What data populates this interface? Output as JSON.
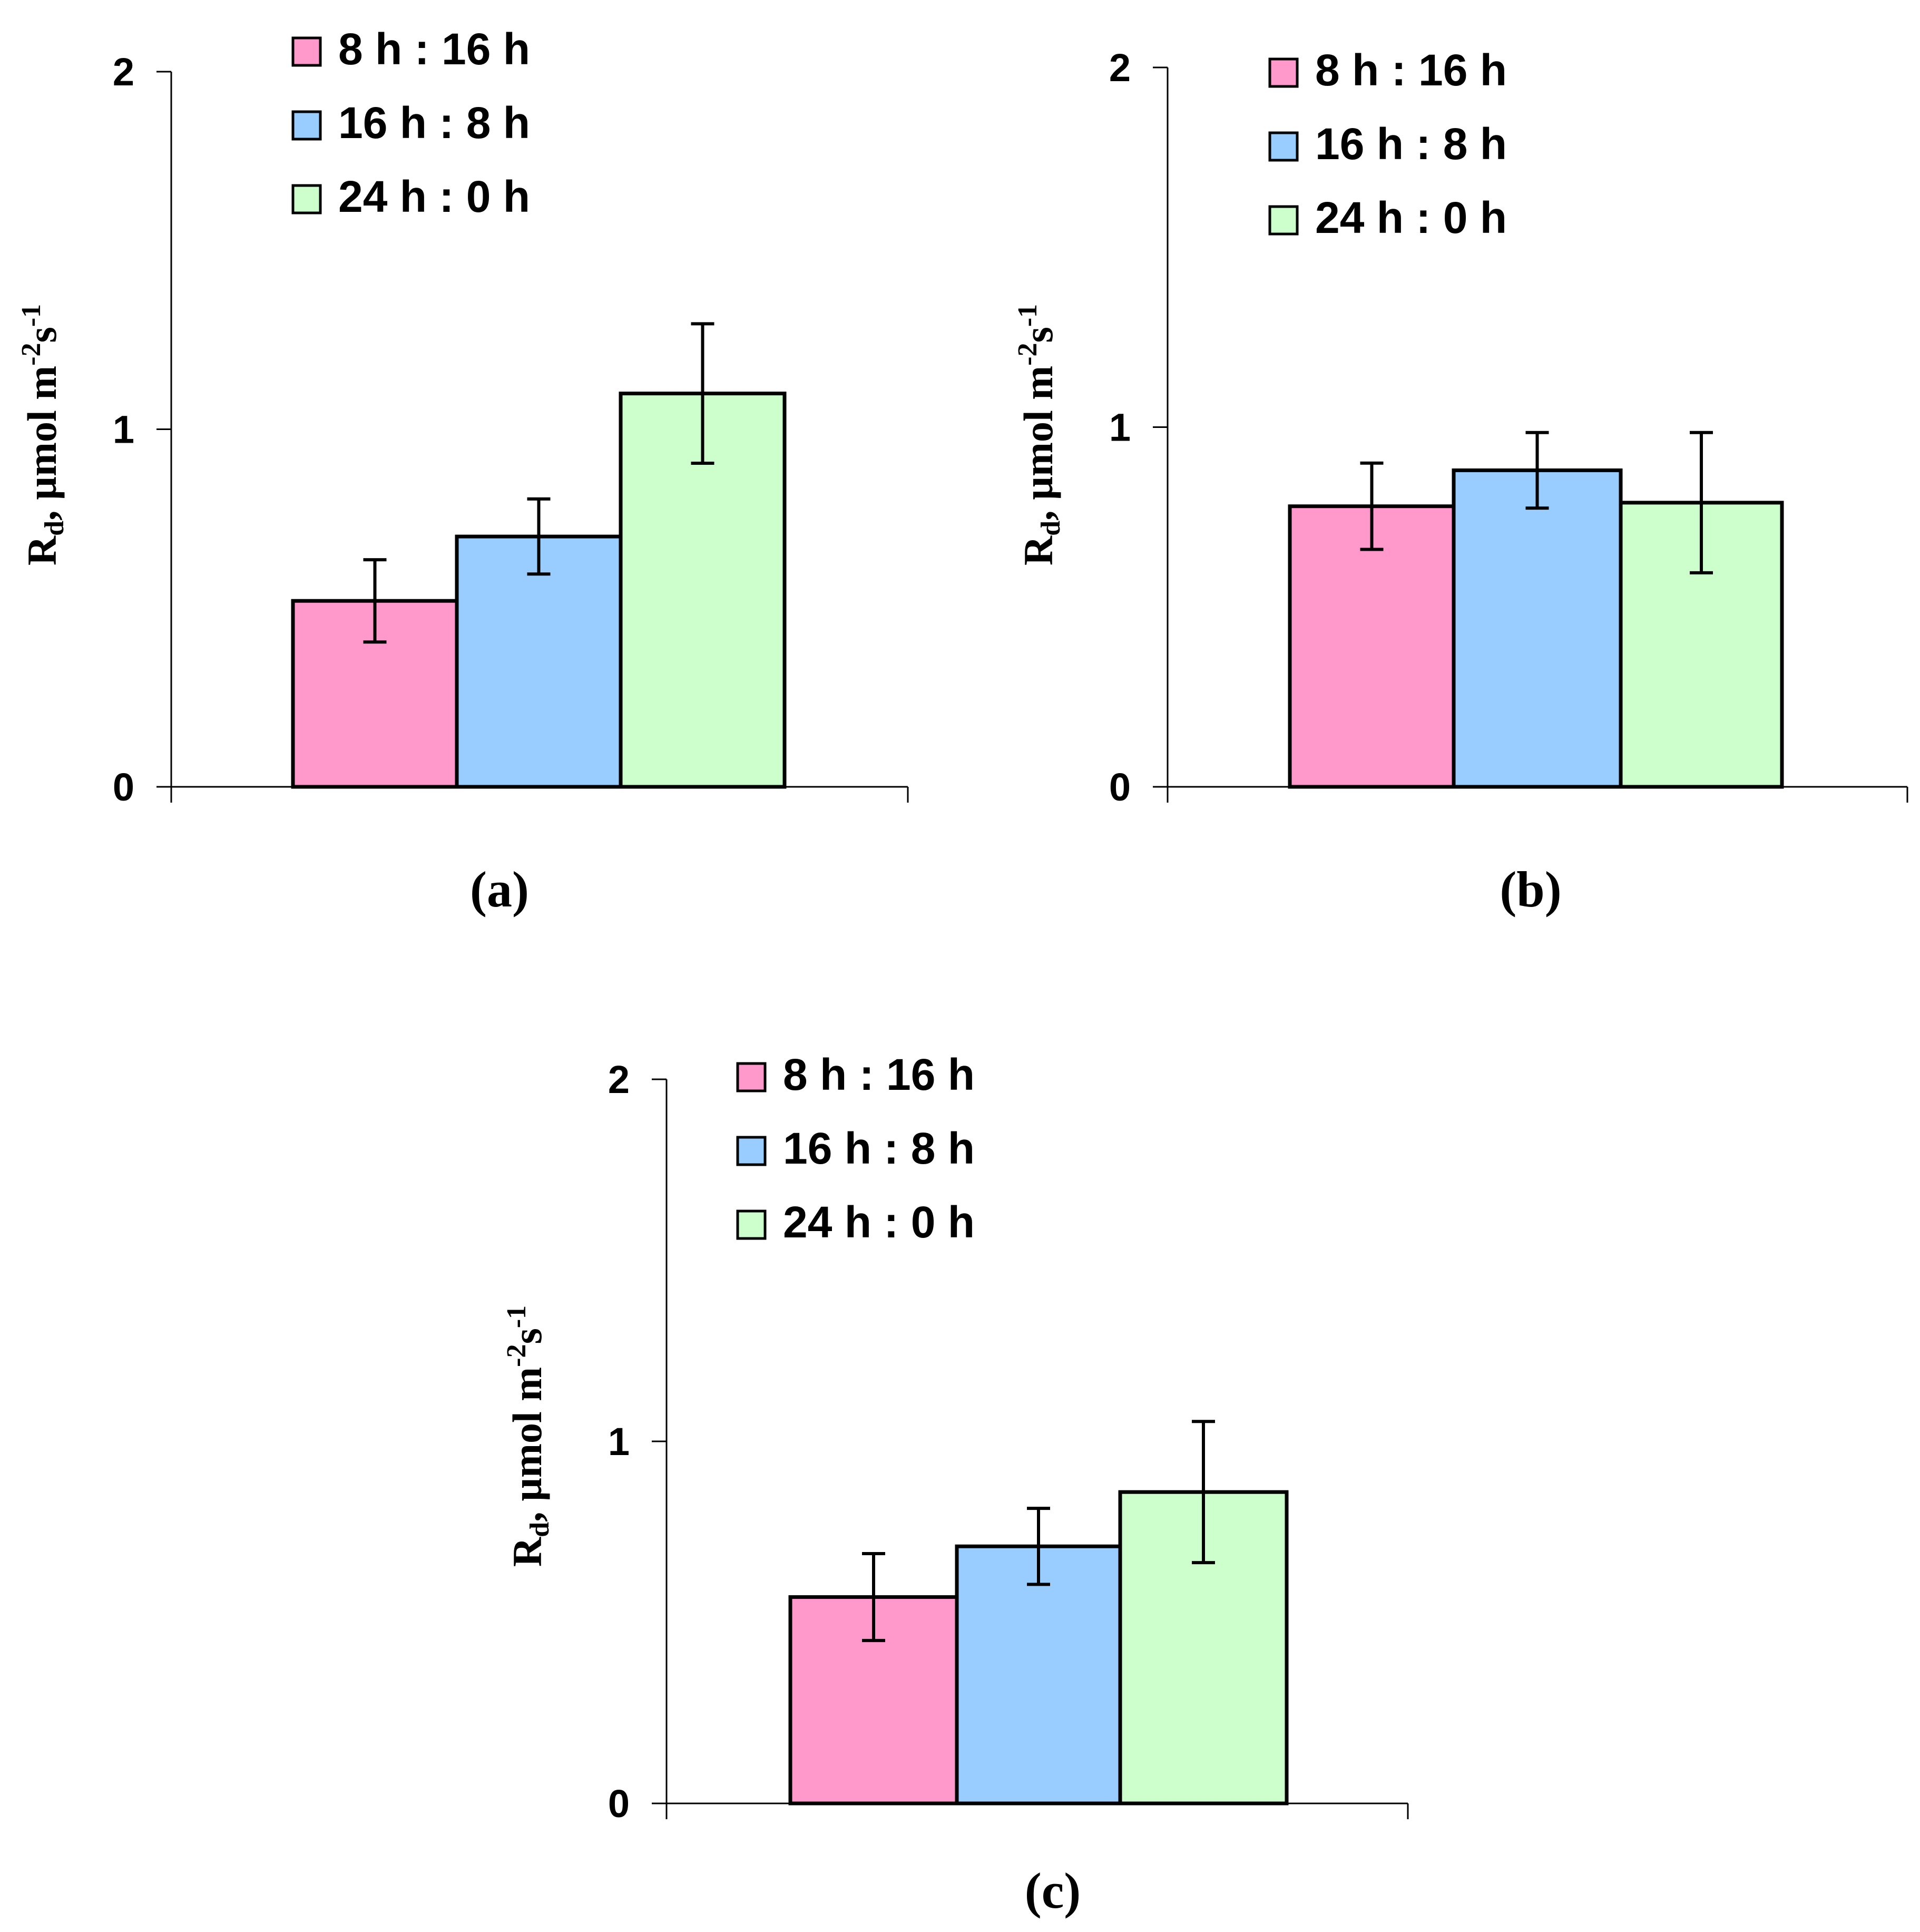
{
  "figure": {
    "legend_labels": [
      "8 h : 16 h",
      "16 h : 8 h",
      "24 h : 0 h"
    ],
    "colors": [
      "#FF99CC",
      "#99CCFF",
      "#CCFFCC"
    ],
    "ylabel": {
      "main": "R",
      "sub": "d",
      "unit_a": ", µmol m",
      "sup1": "-2",
      "unit_b": "s",
      "sup2": "-1"
    }
  },
  "chart_data": [
    {
      "type": "bar",
      "panel": "(a)",
      "ylim": [
        0,
        2
      ],
      "yticks": [
        0,
        1,
        2
      ],
      "series": [
        {
          "name": "8 h : 16 h",
          "value": 0.52,
          "error": 0.115
        },
        {
          "name": "16 h : 8 h",
          "value": 0.7,
          "error": 0.105
        },
        {
          "name": "24 h : 0 h",
          "value": 1.1,
          "error": 0.195
        }
      ]
    },
    {
      "type": "bar",
      "panel": "(b)",
      "ylim": [
        0,
        2
      ],
      "yticks": [
        0,
        1,
        2
      ],
      "series": [
        {
          "name": "8 h : 16 h",
          "value": 0.78,
          "error": 0.12
        },
        {
          "name": "16 h : 8 h",
          "value": 0.88,
          "error": 0.105
        },
        {
          "name": "24 h : 0 h",
          "value": 0.79,
          "error": 0.195
        }
      ]
    },
    {
      "type": "bar",
      "panel": "(c)",
      "ylim": [
        0,
        2
      ],
      "yticks": [
        0,
        1,
        2
      ],
      "series": [
        {
          "name": "8 h : 16 h",
          "value": 0.57,
          "error": 0.12
        },
        {
          "name": "16 h : 8 h",
          "value": 0.71,
          "error": 0.105
        },
        {
          "name": "24 h : 0 h",
          "value": 0.86,
          "error": 0.195
        }
      ]
    }
  ]
}
